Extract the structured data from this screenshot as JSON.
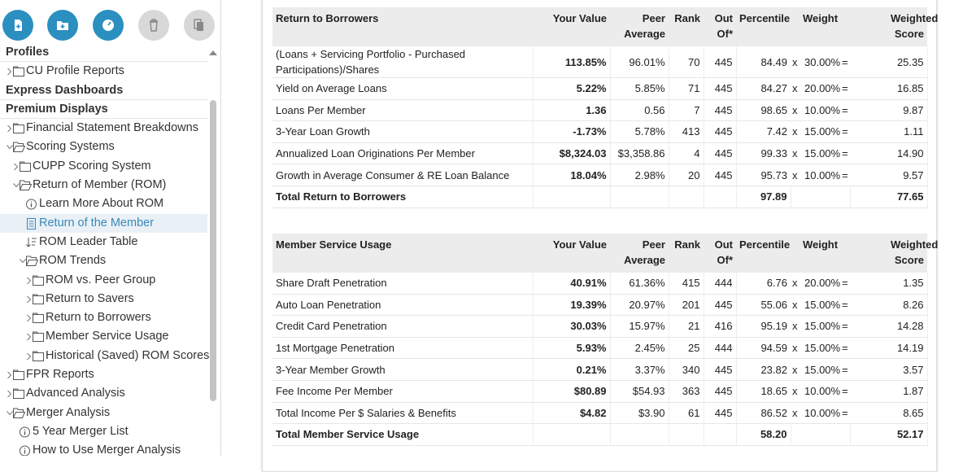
{
  "sidebar": {
    "items": [
      "Profiles",
      "CU Profile Reports",
      "Express Dashboards",
      "Premium Displays",
      "Financial Statement Breakdowns",
      "Scoring Systems",
      "CUPP Scoring System",
      "Return of Member (ROM)",
      "Learn More About ROM",
      "Return of the Member",
      "ROM Leader Table",
      "ROM Trends",
      "ROM vs. Peer Group",
      "Return to Savers",
      "Return to Borrowers",
      "Member Service Usage",
      "Historical (Saved) ROM Scores",
      "FPR Reports",
      "Advanced Analysis",
      "Merger Analysis",
      "5 Year Merger List",
      "How to Use Merger Analysis"
    ]
  },
  "tables": [
    {
      "header": [
        "Return to Borrowers",
        "Your Value",
        "Peer Average",
        "Rank",
        "Out Of*",
        "Percentile",
        "Weight",
        "Weighted Score"
      ],
      "rows": [
        [
          "(Loans + Servicing Portfolio - Purchased Participations)/Shares",
          "113.85%",
          "96.01%",
          "70",
          "445",
          "84.49",
          "x",
          "30.00%",
          "=",
          "25.35"
        ],
        [
          "Yield on Average Loans",
          "5.22%",
          "5.85%",
          "71",
          "445",
          "84.27",
          "x",
          "20.00%",
          "=",
          "16.85"
        ],
        [
          "Loans Per Member",
          "1.36",
          "0.56",
          "7",
          "445",
          "98.65",
          "x",
          "10.00%",
          "=",
          "9.87"
        ],
        [
          "3-Year Loan Growth",
          "-1.73%",
          "5.78%",
          "413",
          "445",
          "7.42",
          "x",
          "15.00%",
          "=",
          "1.11"
        ],
        [
          "Annualized Loan Originations Per Member",
          "$8,324.03",
          "$3,358.86",
          "4",
          "445",
          "99.33",
          "x",
          "15.00%",
          "=",
          "14.90"
        ],
        [
          "Growth in Average Consumer & RE Loan Balance",
          "18.04%",
          "2.98%",
          "20",
          "445",
          "95.73",
          "x",
          "10.00%",
          "=",
          "9.57"
        ]
      ],
      "total": {
        "label": "Total Return to Borrowers",
        "percentile": "97.89",
        "score": "77.65"
      }
    },
    {
      "header": [
        "Member Service Usage",
        "Your Value",
        "Peer Average",
        "Rank",
        "Out Of*",
        "Percentile",
        "Weight",
        "Weighted Score"
      ],
      "rows": [
        [
          "Share Draft Penetration",
          "40.91%",
          "61.36%",
          "415",
          "444",
          "6.76",
          "x",
          "20.00%",
          "=",
          "1.35"
        ],
        [
          "Auto Loan Penetration",
          "19.39%",
          "20.97%",
          "201",
          "445",
          "55.06",
          "x",
          "15.00%",
          "=",
          "8.26"
        ],
        [
          "Credit Card Penetration",
          "30.03%",
          "15.97%",
          "21",
          "416",
          "95.19",
          "x",
          "15.00%",
          "=",
          "14.28"
        ],
        [
          "1st Mortgage Penetration",
          "5.93%",
          "2.45%",
          "25",
          "444",
          "94.59",
          "x",
          "15.00%",
          "=",
          "14.19"
        ],
        [
          "3-Year Member Growth",
          "0.21%",
          "3.37%",
          "340",
          "445",
          "23.82",
          "x",
          "15.00%",
          "=",
          "3.57"
        ],
        [
          "Fee Income Per Member",
          "$80.89",
          "$54.93",
          "363",
          "445",
          "18.65",
          "x",
          "10.00%",
          "=",
          "1.87"
        ],
        [
          "Total Income Per $ Salaries & Benefits",
          "$4.82",
          "$3.90",
          "61",
          "445",
          "86.52",
          "x",
          "10.00%",
          "=",
          "8.65"
        ]
      ],
      "total": {
        "label": "Total Member Service Usage",
        "percentile": "58.20",
        "score": "52.17"
      }
    }
  ]
}
